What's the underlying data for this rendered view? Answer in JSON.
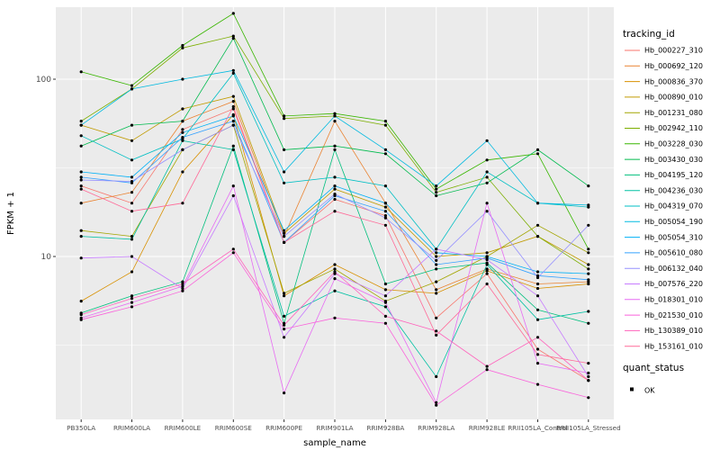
{
  "figure": {
    "background": "#FFFFFF",
    "panel_background": "#EBEBEB",
    "grid_color": "#FFFFFF",
    "axis_text_color": "#4D4D4D",
    "title_text_color": "#000000"
  },
  "chart_data": {
    "type": "line",
    "title": "",
    "xlabel": "sample_name",
    "ylabel": "FPKM + 1",
    "y_scale": "log10",
    "y_ticks": [
      10,
      100
    ],
    "y_minor": [
      3.162,
      31.623
    ],
    "y_domain": [
      1.2,
      255
    ],
    "grid": true,
    "legend_position": "right",
    "legend_title": "tracking_id",
    "legend2_title": "quant_status",
    "quant_status": {
      "label": "OK",
      "point_color": "#000000"
    },
    "point_color": "#000000",
    "categories": [
      "PB350LA",
      "RRIM600LA",
      "RRIM600LE",
      "RRIM600SE",
      "RRIM600PE",
      "RRIM901LA",
      "RRIM928BA",
      "RRIM928LA",
      "RRIM928LE",
      "RRII105LA_Control",
      "RRII105LA_Stressed"
    ],
    "series": [
      {
        "name": "Hb_000227_310",
        "color": "#F8766D",
        "values": [
          25,
          20,
          52,
          68,
          12,
          21,
          17,
          4.5,
          8,
          3,
          2
        ]
      },
      {
        "name": "Hb_000692_120",
        "color": "#EA8331",
        "values": [
          20,
          23,
          58,
          75,
          13,
          58,
          20,
          6.5,
          8.5,
          7,
          7.2
        ]
      },
      {
        "name": "Hb_000836_370",
        "color": "#D89000",
        "values": [
          5.6,
          8.2,
          30,
          63,
          6,
          9,
          6.5,
          6.2,
          8.3,
          6.6,
          7
        ]
      },
      {
        "name": "Hb_000890_010",
        "color": "#C09B00",
        "values": [
          55,
          45,
          68,
          80,
          13.5,
          24,
          19,
          10,
          10.5,
          13,
          9
        ]
      },
      {
        "name": "Hb_001231_080",
        "color": "#A3A500",
        "values": [
          14,
          13,
          40,
          55,
          6.2,
          8.5,
          5.6,
          7.2,
          10,
          15,
          10.5
        ]
      },
      {
        "name": "Hb_002942_110",
        "color": "#7CAE00",
        "values": [
          58,
          88,
          150,
          175,
          60,
          62,
          55,
          23,
          28,
          13,
          8.5
        ]
      },
      {
        "name": "Hb_003228_030",
        "color": "#39B600",
        "values": [
          110,
          92,
          155,
          235,
          62,
          64,
          58,
          24,
          35,
          38,
          11
        ]
      },
      {
        "name": "Hb_003430_030",
        "color": "#00BB4E",
        "values": [
          42,
          55,
          58,
          170,
          40,
          42,
          38,
          22,
          26,
          40,
          25
        ]
      },
      {
        "name": "Hb_004195_120",
        "color": "#00BF7D",
        "values": [
          4.8,
          6,
          7.2,
          42,
          4.2,
          40,
          7,
          8.5,
          9.2,
          5,
          4.2
        ]
      },
      {
        "name": "Hb_004236_030",
        "color": "#00C1A3",
        "values": [
          13,
          12.5,
          45,
          40,
          4.6,
          6.4,
          5.2,
          2.1,
          9,
          4.4,
          4.9
        ]
      },
      {
        "name": "Hb_004319_070",
        "color": "#00BFC4",
        "values": [
          48,
          35,
          46,
          108,
          26,
          28,
          25,
          11,
          30,
          20,
          19
        ]
      },
      {
        "name": "Hb_005054_190",
        "color": "#00BAE0",
        "values": [
          55,
          88,
          100,
          112,
          30,
          62,
          40,
          25,
          45,
          20,
          19.5
        ]
      },
      {
        "name": "Hb_005054_310",
        "color": "#00B0F6",
        "values": [
          30,
          28,
          50,
          62,
          14,
          25,
          20,
          10.5,
          10,
          8.2,
          8
        ]
      },
      {
        "name": "Hb_005610_080",
        "color": "#35A2FF",
        "values": [
          28,
          26,
          47,
          58,
          12,
          22,
          18,
          9,
          9.8,
          7.8,
          7.4
        ]
      },
      {
        "name": "Hb_006132_040",
        "color": "#9590FF",
        "values": [
          27,
          26.5,
          40,
          55,
          13,
          22.5,
          16.5,
          9.5,
          18,
          7.6,
          15
        ]
      },
      {
        "name": "Hb_007576_220",
        "color": "#C77CFF",
        "values": [
          9.8,
          10,
          6.6,
          22,
          3.5,
          8,
          6,
          11,
          9.6,
          6,
          2.1
        ]
      },
      {
        "name": "Hb_018301_010",
        "color": "#E76BF3",
        "values": [
          4.5,
          5.5,
          6.8,
          25,
          1.7,
          7.5,
          5.5,
          1.5,
          20,
          2.5,
          2.2
        ]
      },
      {
        "name": "Hb_021530_010",
        "color": "#FA62DB",
        "values": [
          4.4,
          5.2,
          6.4,
          10.5,
          3.9,
          4.5,
          4.2,
          1.45,
          2.3,
          1.9,
          1.6
        ]
      },
      {
        "name": "Hb_130389_010",
        "color": "#FF62BC",
        "values": [
          4.7,
          5.8,
          7,
          11,
          4.1,
          8.2,
          4.6,
          3.8,
          2.4,
          3.5,
          2
        ]
      },
      {
        "name": "Hb_153161_010",
        "color": "#FF6A98",
        "values": [
          24,
          18,
          20,
          70,
          12,
          18,
          15,
          3.6,
          7,
          2.8,
          2.5
        ]
      }
    ]
  }
}
